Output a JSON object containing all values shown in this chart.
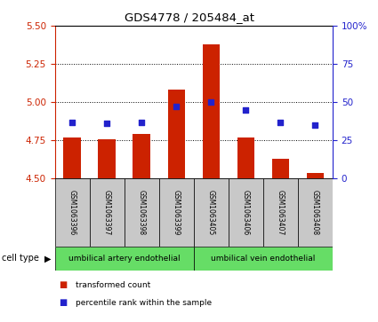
{
  "title": "GDS4778 / 205484_at",
  "samples": [
    "GSM1063396",
    "GSM1063397",
    "GSM1063398",
    "GSM1063399",
    "GSM1063405",
    "GSM1063406",
    "GSM1063407",
    "GSM1063408"
  ],
  "transformed_count": [
    4.77,
    4.76,
    4.79,
    5.08,
    5.38,
    4.77,
    4.63,
    4.54
  ],
  "percentile_rank": [
    37,
    36,
    37,
    47,
    50,
    45,
    37,
    35
  ],
  "ylim_left": [
    4.5,
    5.5
  ],
  "ylim_right": [
    0,
    100
  ],
  "yticks_left": [
    4.5,
    4.75,
    5.0,
    5.25,
    5.5
  ],
  "yticks_right": [
    0,
    25,
    50,
    75,
    100
  ],
  "grid_lines": [
    4.75,
    5.0,
    5.25
  ],
  "bar_color": "#cc2200",
  "dot_color": "#2222cc",
  "bar_bottom": 4.5,
  "cell_type_groups": [
    {
      "label": "umbilical artery endothelial",
      "indices": [
        0,
        1,
        2,
        3
      ]
    },
    {
      "label": "umbilical vein endothelial",
      "indices": [
        4,
        5,
        6,
        7
      ]
    }
  ],
  "legend_items": [
    {
      "label": "transformed count",
      "color": "#cc2200"
    },
    {
      "label": "percentile rank within the sample",
      "color": "#2222cc"
    }
  ],
  "cell_type_label": "cell type",
  "background_color": "#ffffff",
  "plot_bg": "#ffffff",
  "sample_bg": "#c8c8c8",
  "cell_type_bg": "#66dd66"
}
